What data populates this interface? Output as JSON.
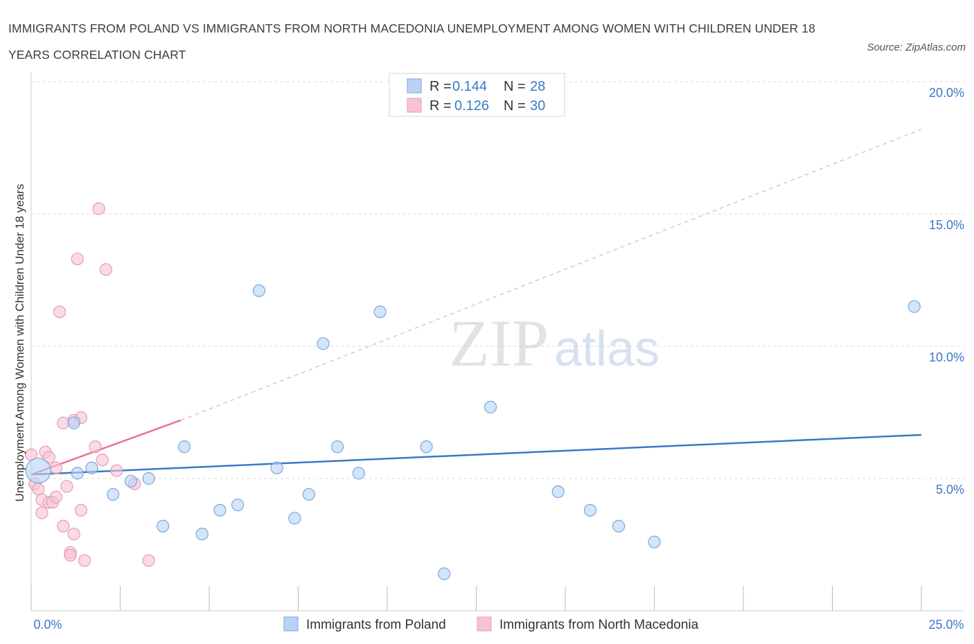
{
  "title": "IMMIGRANTS FROM POLAND VS IMMIGRANTS FROM NORTH MACEDONIA UNEMPLOYMENT AMONG WOMEN WITH CHILDREN UNDER 18 YEARS CORRELATION CHART",
  "source": "Source: ZipAtlas.com",
  "watermark": {
    "zip": "ZIP",
    "atlas": "atlas"
  },
  "colors": {
    "blue": "#3a78c9",
    "blue_fill": "#b8d3f5",
    "pink": "#e8709a",
    "pink_fill": "#f7c3d3",
    "grid": "#d9d9d9"
  },
  "chart_data": {
    "type": "scatter",
    "title": "IMMIGRANTS FROM POLAND VS IMMIGRANTS FROM NORTH MACEDONIA UNEMPLOYMENT AMONG WOMEN WITH CHILDREN UNDER 18 YEARS CORRELATION CHART",
    "xlabel": "",
    "ylabel": "Unemployment Among Women with Children Under 18 years",
    "xlim": [
      0,
      25
    ],
    "ylim": [
      0,
      20
    ],
    "x_tick_labels": [
      "0.0%",
      "25.0%"
    ],
    "y_ticks": [
      {
        "value": 5,
        "label": "5.0%"
      },
      {
        "value": 10,
        "label": "10.0%"
      },
      {
        "value": 15,
        "label": "15.0%"
      },
      {
        "value": 20,
        "label": "20.0%"
      }
    ],
    "legend": [
      {
        "r_label": "R =",
        "r_value": "0.144",
        "n_label": "N =",
        "n_value": "28"
      },
      {
        "r_label": "R =",
        "r_value": "0.126",
        "n_label": "N =",
        "n_value": "30"
      }
    ],
    "series": [
      {
        "name": "Immigrants from Poland",
        "color": "#3a78c9",
        "points": [
          {
            "x": 0.2,
            "y": 5.3,
            "large": true
          },
          {
            "x": 1.3,
            "y": 5.2
          },
          {
            "x": 1.2,
            "y": 7.1
          },
          {
            "x": 1.7,
            "y": 5.4
          },
          {
            "x": 2.3,
            "y": 4.4
          },
          {
            "x": 2.8,
            "y": 4.9
          },
          {
            "x": 3.3,
            "y": 5.0
          },
          {
            "x": 3.7,
            "y": 3.2
          },
          {
            "x": 4.3,
            "y": 6.2
          },
          {
            "x": 4.8,
            "y": 2.9
          },
          {
            "x": 5.3,
            "y": 3.8
          },
          {
            "x": 5.8,
            "y": 4.0
          },
          {
            "x": 6.4,
            "y": 12.1
          },
          {
            "x": 6.9,
            "y": 5.4
          },
          {
            "x": 7.4,
            "y": 3.5
          },
          {
            "x": 7.8,
            "y": 4.4
          },
          {
            "x": 8.2,
            "y": 10.1
          },
          {
            "x": 8.6,
            "y": 6.2
          },
          {
            "x": 9.2,
            "y": 5.2
          },
          {
            "x": 9.8,
            "y": 11.3
          },
          {
            "x": 11.1,
            "y": 6.2
          },
          {
            "x": 11.6,
            "y": 1.4
          },
          {
            "x": 12.9,
            "y": 7.7
          },
          {
            "x": 14.8,
            "y": 4.5
          },
          {
            "x": 15.7,
            "y": 3.8
          },
          {
            "x": 16.5,
            "y": 3.2
          },
          {
            "x": 17.5,
            "y": 2.6
          },
          {
            "x": 24.8,
            "y": 11.5
          }
        ],
        "trend": {
          "x0": 0,
          "y0": 5.15,
          "x1": 25,
          "y1": 6.65
        }
      },
      {
        "name": "Immigrants from North Macedonia",
        "color": "#e8709a",
        "points": [
          {
            "x": 0.0,
            "y": 5.9
          },
          {
            "x": 0.1,
            "y": 4.8
          },
          {
            "x": 0.2,
            "y": 4.6
          },
          {
            "x": 0.3,
            "y": 4.2
          },
          {
            "x": 0.3,
            "y": 3.7
          },
          {
            "x": 0.4,
            "y": 6.0
          },
          {
            "x": 0.5,
            "y": 5.8
          },
          {
            "x": 0.5,
            "y": 4.1
          },
          {
            "x": 0.6,
            "y": 4.1
          },
          {
            "x": 0.7,
            "y": 5.4
          },
          {
            "x": 0.7,
            "y": 4.3
          },
          {
            "x": 0.8,
            "y": 11.3
          },
          {
            "x": 0.9,
            "y": 3.2
          },
          {
            "x": 0.9,
            "y": 7.1
          },
          {
            "x": 1.0,
            "y": 4.7
          },
          {
            "x": 1.1,
            "y": 2.2
          },
          {
            "x": 1.1,
            "y": 2.1
          },
          {
            "x": 1.2,
            "y": 7.2
          },
          {
            "x": 1.2,
            "y": 2.9
          },
          {
            "x": 1.3,
            "y": 13.3
          },
          {
            "x": 1.4,
            "y": 7.3
          },
          {
            "x": 1.4,
            "y": 3.8
          },
          {
            "x": 1.5,
            "y": 1.9
          },
          {
            "x": 1.8,
            "y": 6.2
          },
          {
            "x": 1.9,
            "y": 15.2
          },
          {
            "x": 2.0,
            "y": 5.7
          },
          {
            "x": 2.1,
            "y": 12.9
          },
          {
            "x": 2.4,
            "y": 5.3
          },
          {
            "x": 2.9,
            "y": 4.8
          },
          {
            "x": 3.3,
            "y": 1.9
          }
        ],
        "trend": {
          "x0": 0,
          "y0": 5.15,
          "x1": 4.2,
          "y1": 7.2
        },
        "trend_ext": {
          "x0": 4.2,
          "y0": 7.2,
          "x1": 25,
          "y1": 18.2
        }
      }
    ]
  }
}
